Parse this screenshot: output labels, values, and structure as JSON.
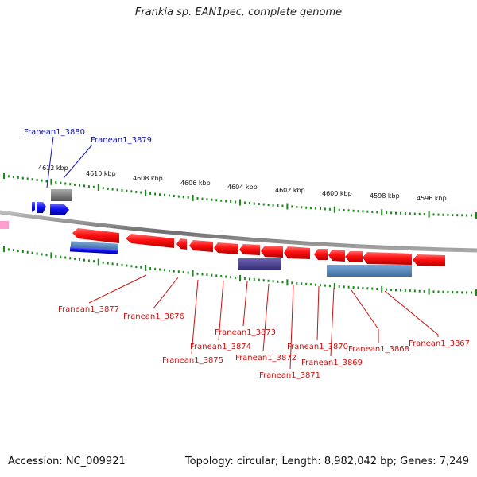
{
  "header": {
    "title": "Frankia sp. EAN1pec, complete genome"
  },
  "footer": {
    "accession": "Accession: NC_009921",
    "summary": "Topology: circular; Length: 8,982,042 bp; Genes: 7,249"
  },
  "axis": {
    "ticks": [
      "4612 kbp",
      "4610 kbp",
      "4608 kbp",
      "4606 kbp",
      "4604 kbp",
      "4602 kbp",
      "4600 kbp",
      "4598 kbp",
      "4596 kbp"
    ]
  },
  "colors": {
    "forward_gene": "#1a1aee",
    "reverse_gene": "#ee1111",
    "cds_blue": "#4a7fb5",
    "cds_purple": "#4a3f8c",
    "gray_feature": "#777777",
    "pink_feature": "#ff9fcf",
    "tick_green": "#1a8a1a",
    "backbone": "#8a8a8a",
    "label_blue": "#1111bb",
    "label_red": "#cc1111"
  },
  "labels": {
    "forward": [
      "Franean1_3880",
      "Franean1_3879"
    ],
    "reverse": [
      "Franean1_3877",
      "Franean1_3876",
      "Franean1_3875",
      "Franean1_3874",
      "Franean1_3873",
      "Franean1_3872",
      "Franean1_3871",
      "Franean1_3870",
      "Franean1_3869",
      "Franean1_3868",
      "Franean1_3867"
    ]
  }
}
